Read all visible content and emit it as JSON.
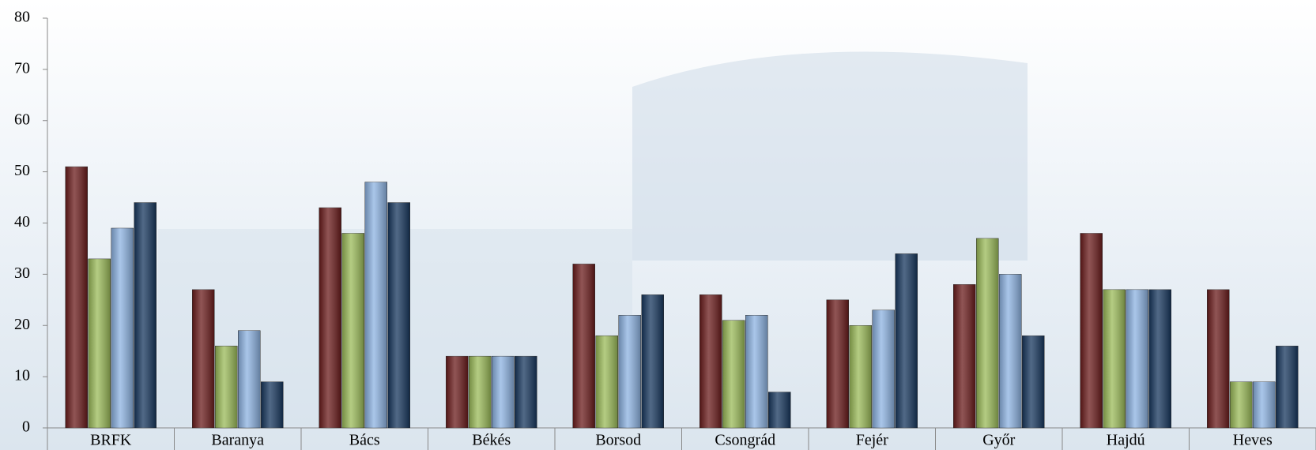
{
  "chart_data": {
    "type": "bar",
    "categories": [
      "BRFK",
      "Baranya",
      "Bács",
      "Békés",
      "Borsod",
      "Csongrád",
      "Fejér",
      "Győr",
      "Hajdú",
      "Heves"
    ],
    "series": [
      {
        "color": "#6b1c1c",
        "values": [
          51,
          27,
          43,
          14,
          32,
          26,
          25,
          28,
          38,
          27
        ]
      },
      {
        "color": "#9bbb59",
        "values": [
          33,
          16,
          38,
          14,
          18,
          21,
          20,
          37,
          27,
          9
        ]
      },
      {
        "color": "#8db3e2",
        "values": [
          39,
          19,
          48,
          14,
          22,
          22,
          23,
          30,
          27,
          9
        ]
      },
      {
        "color": "#17375e",
        "values": [
          44,
          9,
          44,
          14,
          26,
          7,
          34,
          18,
          27,
          16
        ]
      }
    ],
    "ylim": [
      0,
      80
    ],
    "yticks": [
      0,
      10,
      20,
      30,
      40,
      50,
      60,
      70,
      80
    ]
  }
}
